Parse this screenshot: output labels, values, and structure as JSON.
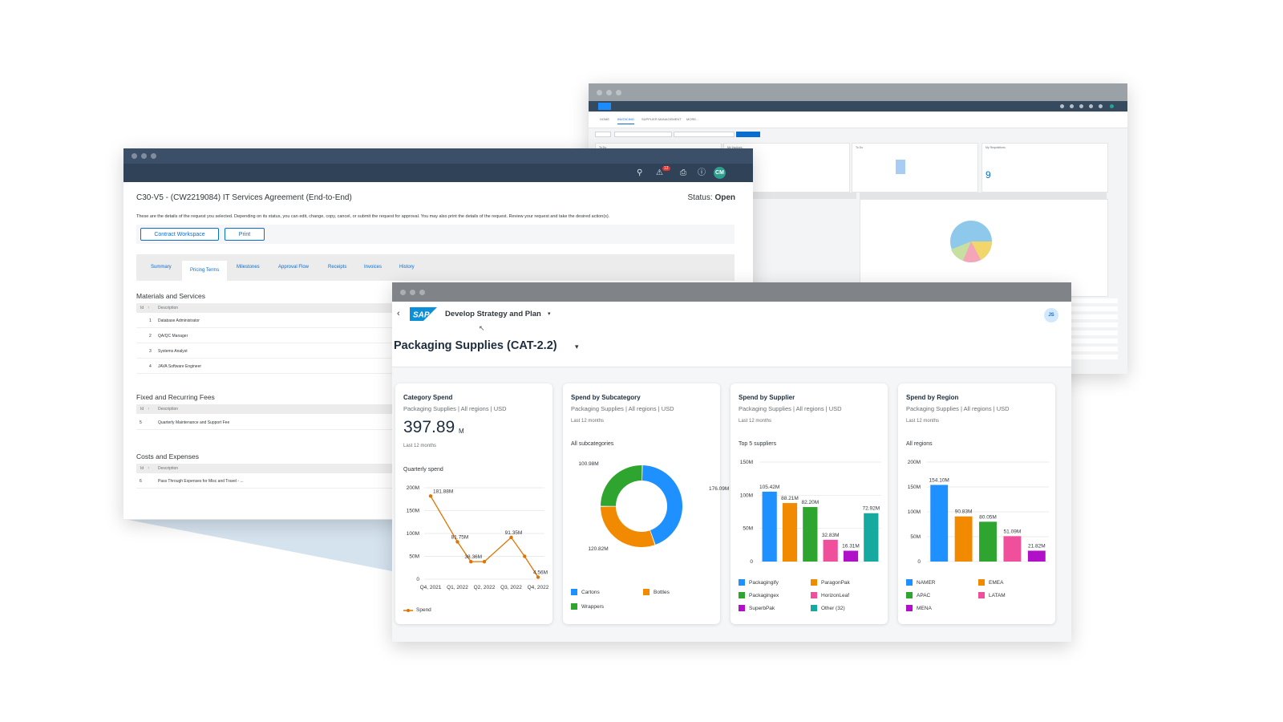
{
  "back_window": {
    "tabs": [
      "HOME",
      "INVOICING",
      "SUPPLIER MANAGEMENT",
      "MORE..."
    ],
    "requisitions_count": "9"
  },
  "contract_window": {
    "title": "C30-V5 - (CW2219084) IT Services Agreement (End-to-End)",
    "status_label": "Status:",
    "status_value": "Open",
    "description": "These are the details of the request you selected. Depending on its status, you can edit, change, copy, cancel, or submit the request for approval. You may also print the details of the request. Review your request and take the desired action(s).",
    "buttons": {
      "contract_workspace": "Contract Workspace",
      "print": "Print"
    },
    "tabs": [
      "Summary",
      "Pricing Terms",
      "Milestones",
      "Approval Flow",
      "Receipts",
      "Invoices",
      "History"
    ],
    "user_initials": "CM",
    "notification_count": "12",
    "sections": [
      {
        "title": "Materials and Services",
        "header_id": "Id",
        "header_desc": "Description",
        "rows": [
          {
            "id": "1",
            "desc": "Database Administrator"
          },
          {
            "id": "2",
            "desc": "QA/QC Manager"
          },
          {
            "id": "3",
            "desc": "Systems Analyst"
          },
          {
            "id": "4",
            "desc": "JAVA Software Engineer"
          }
        ]
      },
      {
        "title": "Fixed and Recurring Fees",
        "header_id": "Id",
        "header_desc": "Description",
        "rows": [
          {
            "id": "5",
            "desc": "Quarterly Maintenance and Support Fee"
          }
        ]
      },
      {
        "title": "Costs and Expenses",
        "header_id": "Id",
        "header_desc": "Description",
        "rows": [
          {
            "id": "6",
            "desc": "Pass Through Expenses for Misc and Travel - ..."
          }
        ]
      }
    ]
  },
  "analytics_window": {
    "app_title": "Develop Strategy and Plan",
    "page_title": "Packaging Supplies (CAT-2.2)",
    "user_initials": "JS",
    "colors": {
      "blue": "#1e90ff",
      "orange": "#f28a00",
      "green": "#2ea52e",
      "pink": "#f0509b",
      "purple": "#b010c8",
      "teal": "#16a99f",
      "line": "#e07400"
    },
    "cards": {
      "category_spend": {
        "title": "Category Spend",
        "subtitle": "Packaging Supplies | All regions | USD",
        "kpi_value": "397.89",
        "kpi_unit": "M",
        "period": "Last 12 months",
        "chart_title": "Quarterly spend",
        "legend": "Spend"
      },
      "spend_by_subcategory": {
        "title": "Spend by Subcategory",
        "subtitle": "Packaging Supplies | All regions | USD",
        "period": "Last 12 months",
        "filter": "All subcategories"
      },
      "spend_by_supplier": {
        "title": "Spend by Supplier",
        "subtitle": "Packaging Supplies | All regions | USD",
        "period": "Last 12 months",
        "filter": "Top 5 suppliers"
      },
      "spend_by_region": {
        "title": "Spend by Region",
        "subtitle": "Packaging Supplies | All regions | USD",
        "period": "Last 12 months",
        "filter": "All regions"
      }
    }
  },
  "chart_data": [
    {
      "type": "line",
      "title": "Quarterly spend",
      "x": [
        "Q4, 2021",
        "Q1, 2022",
        "Q2, 2022",
        "Q3, 2022",
        "Q4, 2022"
      ],
      "x_positions": [
        0,
        1,
        1.5,
        2,
        3,
        3.5,
        4
      ],
      "points": [
        {
          "x": 0,
          "y": 181.88,
          "label": "181.88M"
        },
        {
          "x": 1,
          "y": 81.75,
          "label": "81.75M"
        },
        {
          "x": 1.5,
          "y": 38.36,
          "label": "38.36M"
        },
        {
          "x": 2,
          "y": 38.36,
          "label": ""
        },
        {
          "x": 3,
          "y": 91.35,
          "label": "91.35M"
        },
        {
          "x": 3.5,
          "y": 50,
          "label": ""
        },
        {
          "x": 4,
          "y": 4.56,
          "label": "4.56M"
        }
      ],
      "series": [
        {
          "name": "Spend"
        }
      ],
      "yticks": [
        "0",
        "50M",
        "100M",
        "150M",
        "200M"
      ],
      "ylim": [
        0,
        200
      ]
    },
    {
      "type": "pie",
      "title": "All subcategories",
      "donut": true,
      "slices": [
        {
          "name": "Cartons",
          "value": 176.09,
          "label": "176.09M",
          "color": "#1e90ff"
        },
        {
          "name": "Bottles",
          "value": 120.82,
          "label": "120.82M",
          "color": "#f28a00"
        },
        {
          "name": "Wrappers",
          "value": 100.98,
          "label": "100.98M",
          "color": "#2ea52e"
        }
      ]
    },
    {
      "type": "bar",
      "title": "Top 5 suppliers",
      "categories": [
        "Packagingify",
        "ParagonPak",
        "Packagingex",
        "HorizonLeaf",
        "SuperbPak",
        "Other (32)"
      ],
      "values": [
        105.42,
        88.21,
        82.2,
        32.83,
        16.31,
        72.92
      ],
      "labels": [
        "105.42M",
        "88.21M",
        "82.20M",
        "32.83M",
        "16.31M",
        "72.92M"
      ],
      "colors": [
        "#1e90ff",
        "#f28a00",
        "#2ea52e",
        "#f0509b",
        "#b010c8",
        "#16a99f"
      ],
      "yticks": [
        "0",
        "50M",
        "100M",
        "150M"
      ],
      "ylim": [
        0,
        150
      ]
    },
    {
      "type": "bar",
      "title": "All regions",
      "categories": [
        "NAMER",
        "EMEA",
        "APAC",
        "LATAM",
        "MENA"
      ],
      "values": [
        154.1,
        90.83,
        80.05,
        51.09,
        21.82
      ],
      "labels": [
        "154.10M",
        "90.83M",
        "80.05M",
        "51.09M",
        "21.82M"
      ],
      "colors": [
        "#1e90ff",
        "#f28a00",
        "#2ea52e",
        "#f0509b",
        "#b010c8"
      ],
      "yticks": [
        "0",
        "50M",
        "100M",
        "150M",
        "200M"
      ],
      "ylim": [
        0,
        200
      ]
    }
  ]
}
